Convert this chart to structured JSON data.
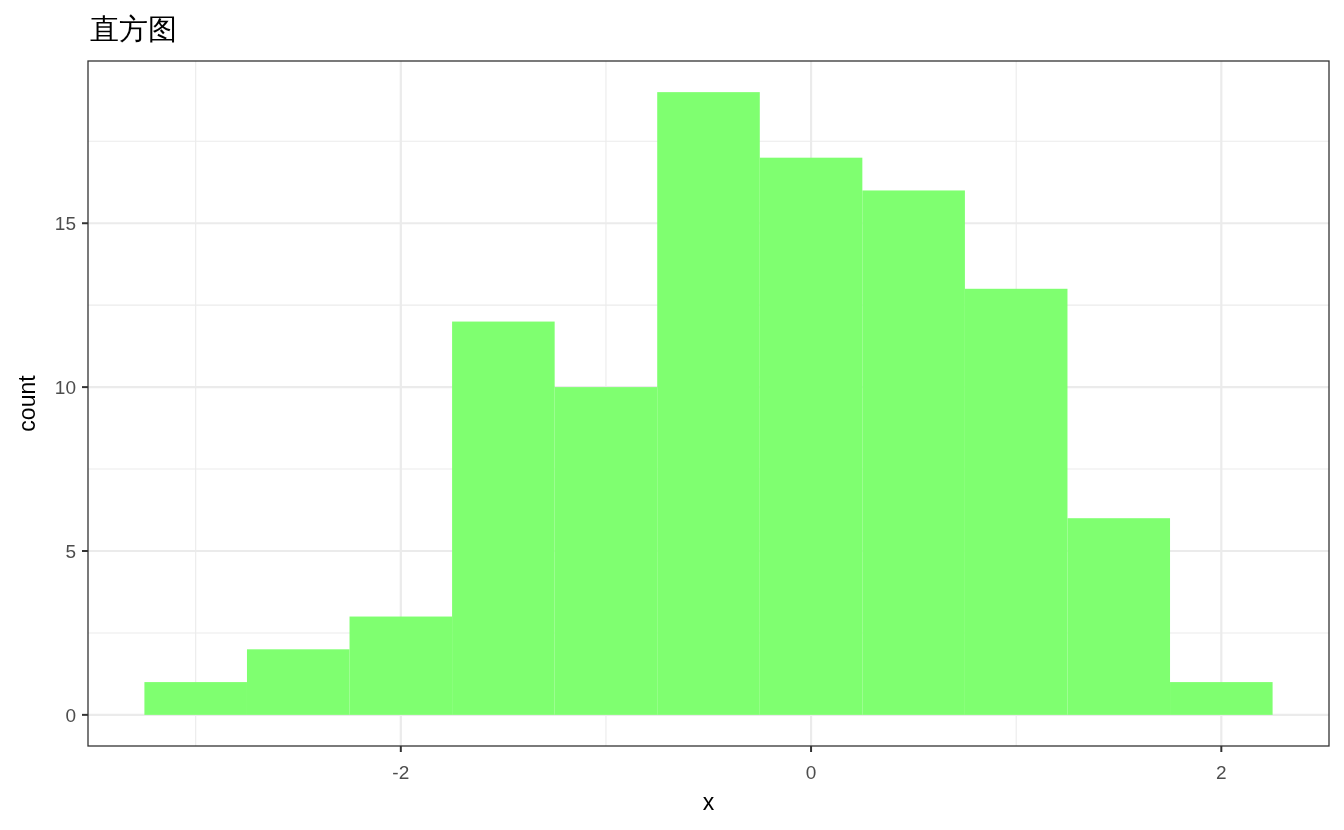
{
  "chart_data": {
    "type": "histogram",
    "title": "直方图",
    "xlabel": "x",
    "ylabel": "count",
    "bins": [
      -3.25,
      -2.75,
      -2.25,
      -1.75,
      -1.25,
      -0.75,
      -0.25,
      0.25,
      0.75,
      1.25,
      1.75,
      2.25
    ],
    "values": [
      1,
      2,
      3,
      12,
      10,
      19,
      17,
      16,
      13,
      6,
      1
    ],
    "color": "#7fff70",
    "xlim": [
      -3.525,
      2.525
    ],
    "xticks": [
      {
        "value": -3,
        "label": null
      },
      -2,
      {
        "value": -1,
        "label": null
      },
      0,
      {
        "value": 1,
        "label": null
      },
      2
    ],
    "ylim": [
      -0.95,
      19.95
    ],
    "yticks": [
      0,
      {
        "value": 2.5,
        "label": null
      },
      5,
      {
        "value": 7.5,
        "label": null
      },
      10,
      {
        "value": 12.5,
        "label": null
      },
      15,
      {
        "value": 17.5,
        "label": null
      }
    ],
    "grid": true
  }
}
